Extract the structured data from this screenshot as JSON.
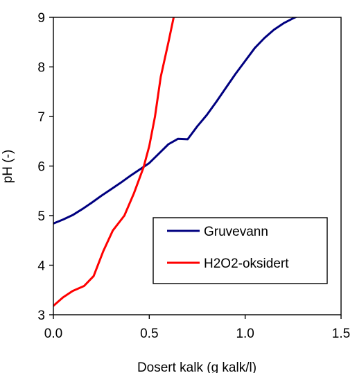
{
  "chart_data": {
    "type": "line",
    "title": "",
    "xlabel": "Dosert kalk (g kalk/l)",
    "ylabel": "pH (-)",
    "xlim": [
      0,
      1.5
    ],
    "ylim": [
      3,
      9
    ],
    "x_ticks": [
      "0.0",
      "0.5",
      "1.0",
      "1.5"
    ],
    "y_ticks": [
      "3",
      "4",
      "5",
      "6",
      "7",
      "8",
      "9"
    ],
    "grid": false,
    "legend_position": "bottom-right",
    "series": [
      {
        "name": "Gruvevann",
        "color": "#000080",
        "x": [
          0.0,
          0.05,
          0.1,
          0.15,
          0.2,
          0.25,
          0.3,
          0.35,
          0.4,
          0.45,
          0.5,
          0.55,
          0.6,
          0.65,
          0.7,
          0.75,
          0.8,
          0.85,
          0.9,
          0.95,
          1.0,
          1.05,
          1.1,
          1.15,
          1.2,
          1.25,
          1.29
        ],
        "y": [
          4.84,
          4.92,
          5.01,
          5.13,
          5.26,
          5.4,
          5.53,
          5.66,
          5.8,
          5.93,
          6.06,
          6.25,
          6.44,
          6.55,
          6.54,
          6.8,
          7.03,
          7.3,
          7.58,
          7.86,
          8.12,
          8.38,
          8.58,
          8.75,
          8.88,
          8.98,
          9.05
        ]
      },
      {
        "name": "H2O2-oksidert",
        "color": "#ff0000",
        "x": [
          0.0,
          0.05,
          0.1,
          0.16,
          0.21,
          0.26,
          0.31,
          0.37,
          0.42,
          0.47,
          0.5,
          0.53,
          0.56,
          0.6,
          0.63
        ],
        "y": [
          3.18,
          3.35,
          3.48,
          3.58,
          3.78,
          4.28,
          4.7,
          5.0,
          5.45,
          5.97,
          6.4,
          7.0,
          7.8,
          8.5,
          9.05
        ]
      }
    ]
  }
}
